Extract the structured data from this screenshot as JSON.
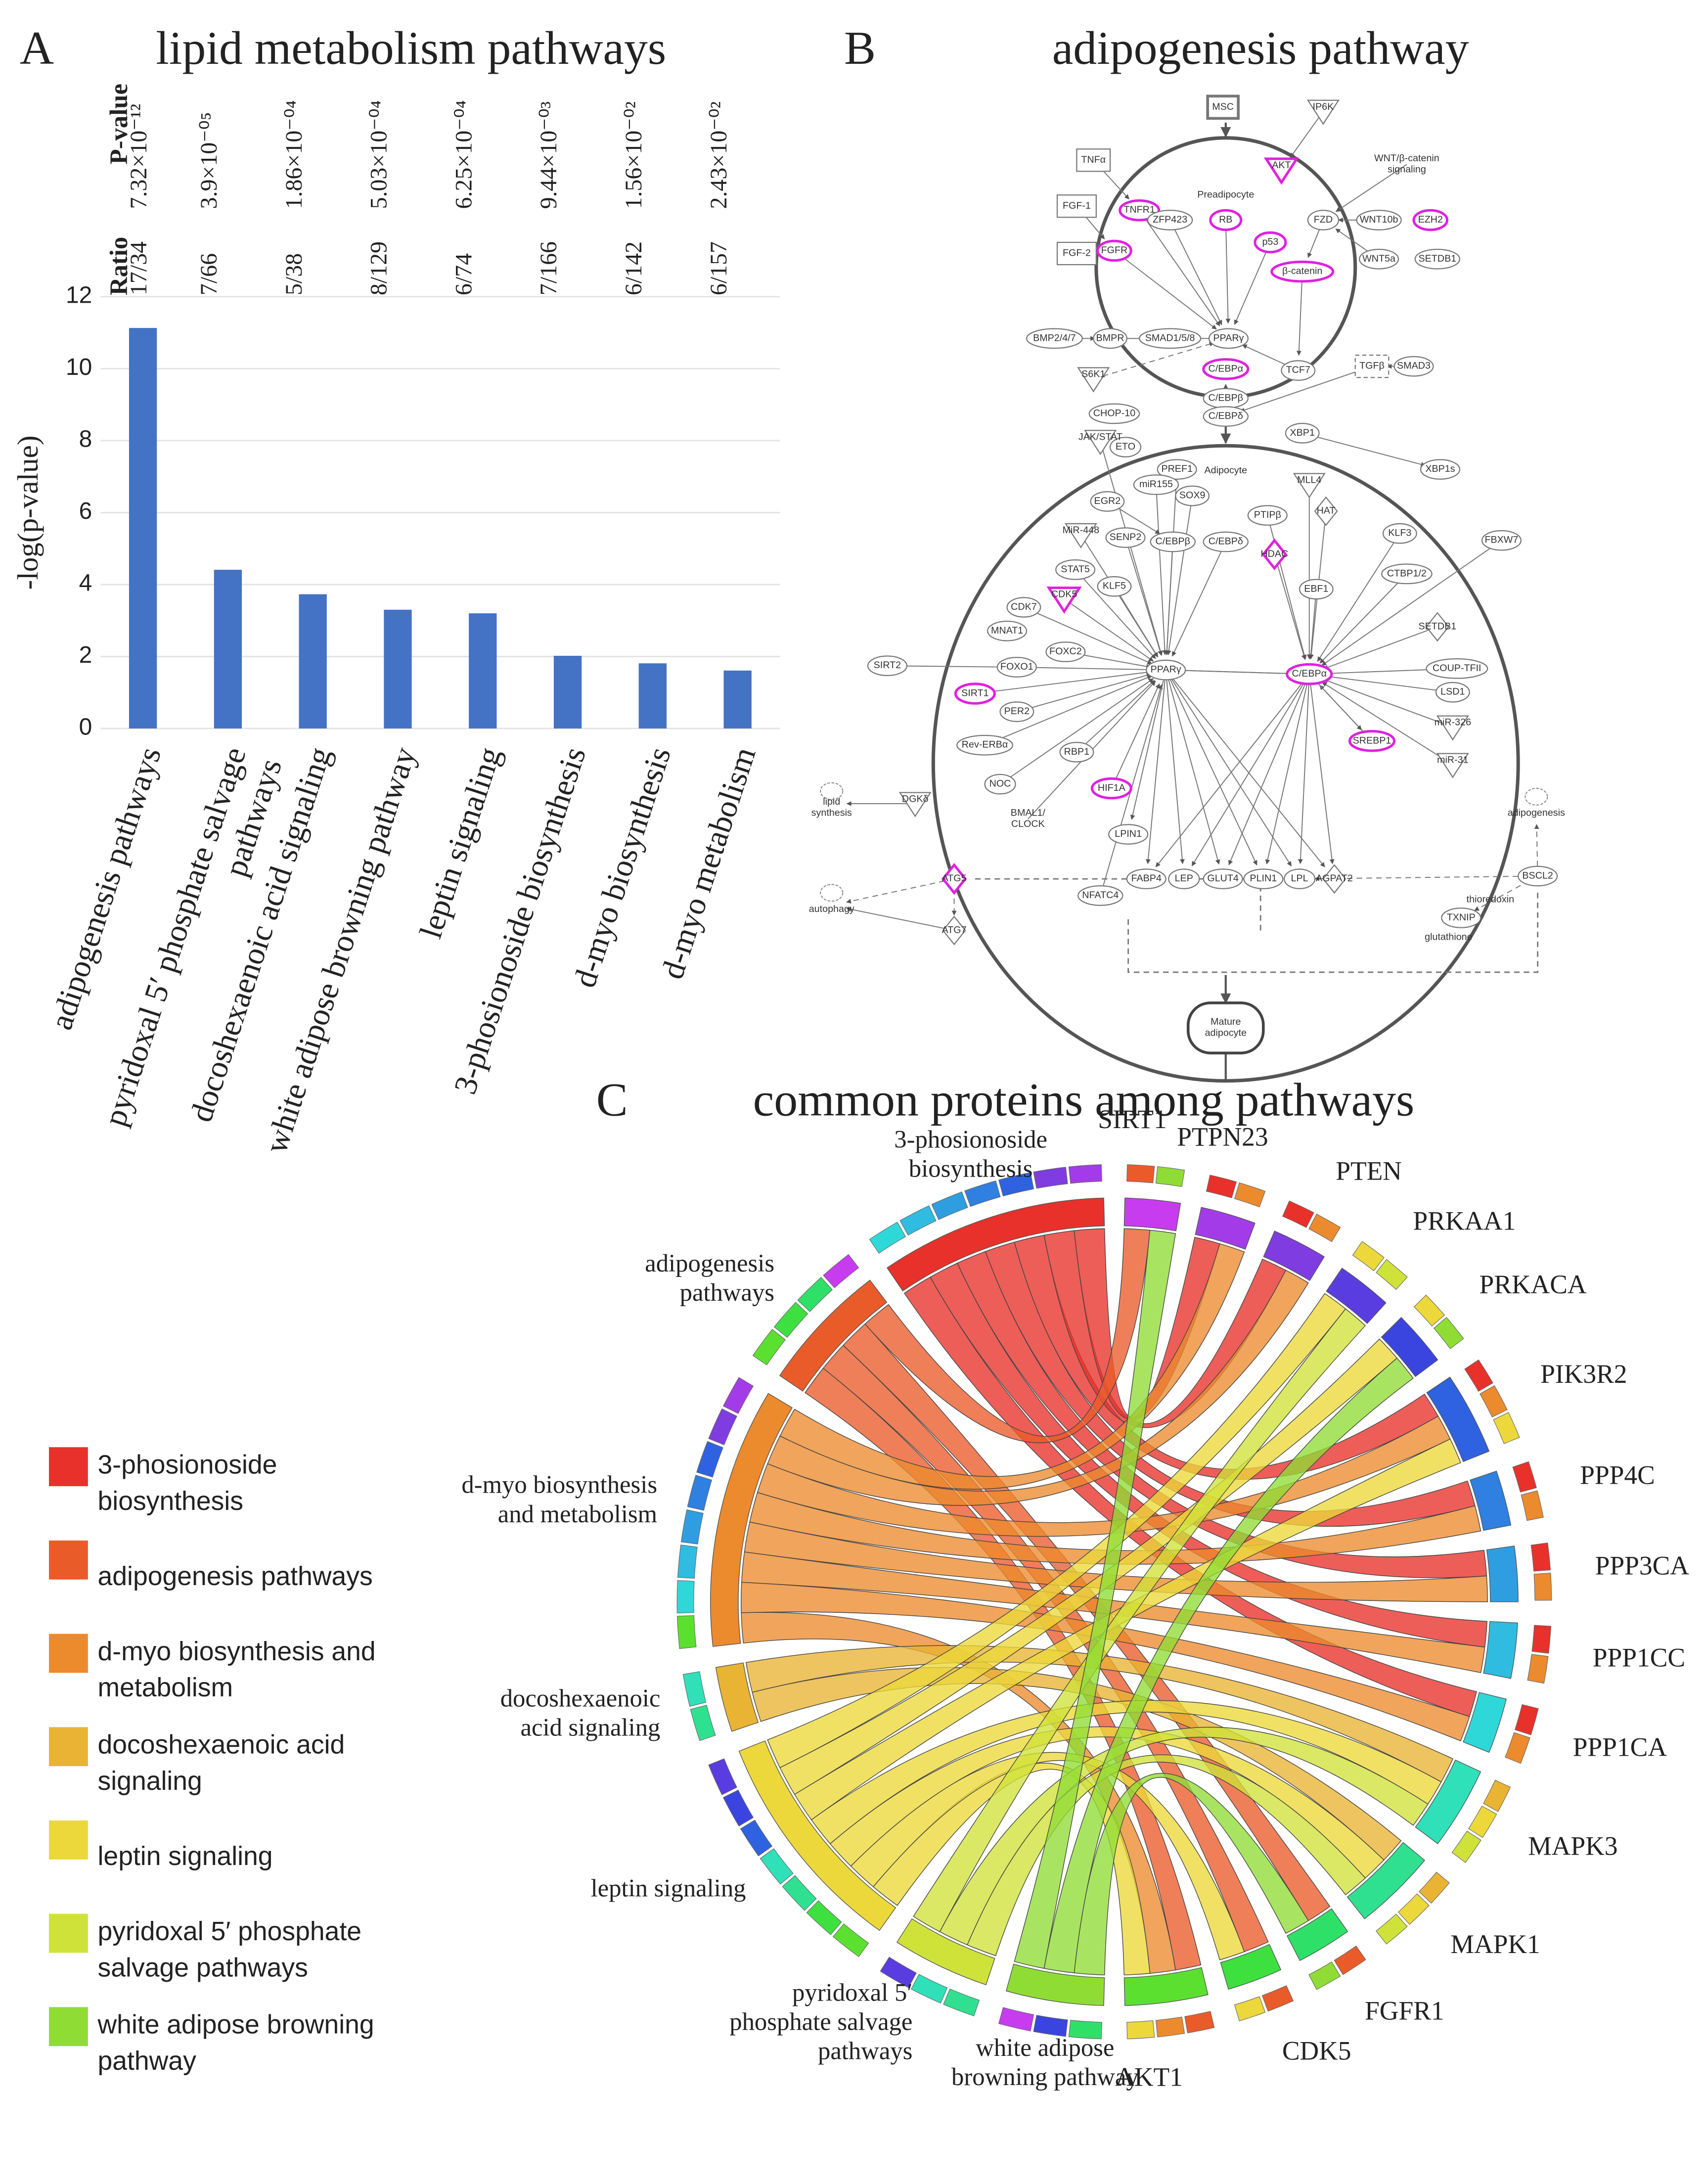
{
  "chart_data": [
    {
      "type": "bar",
      "panel_label": "A",
      "title": "lipid metabolism pathways",
      "y_label": "-log(p-value)",
      "categories": [
        "adipogenesis pathways",
        "pyridoxal 5′ phosphate salvage pathways",
        "docoshexaenoic acid signaling",
        "white adipose browning pathway",
        "leptin signaling",
        "3-phosionoside biosynthesis",
        "d-myo biosynthesis",
        "d-myo metabolism"
      ],
      "values": [
        11.13,
        4.41,
        3.73,
        3.3,
        3.2,
        2.02,
        1.81,
        1.61
      ],
      "color": "#4472c4",
      "ylim": [
        0,
        12
      ],
      "yticks": [
        0,
        2,
        4,
        6,
        8,
        10,
        12
      ],
      "grid": true,
      "pvalue_header": "P-value",
      "pvalues": [
        "7.32×10⁻¹²",
        "3.9×10⁻⁰⁵",
        "1.86×10⁻⁰⁴",
        "5.03×10⁻⁰⁴",
        "6.25×10⁻⁰⁴",
        "9.44×10⁻⁰³",
        "1.56×10⁻⁰²",
        "2.43×10⁻⁰²"
      ],
      "ratio_header": "Ratio",
      "ratios": [
        "17/34",
        "7/66",
        "5/38",
        "8/129",
        "6/74",
        "7/166",
        "6/142",
        "6/157"
      ]
    },
    {
      "type": "chord",
      "panel_label": "C",
      "title": "common proteins among pathways",
      "categories": [
        "SIRT1",
        "PTPN23",
        "PTEN",
        "PRKAA1",
        "PRKACA",
        "PIK3R2",
        "PPP4C",
        "PPP3CA",
        "PPP1CC",
        "PPP1CA",
        "MAPK3",
        "MAPK1",
        "FGFR1",
        "CDK5",
        "AKT1"
      ],
      "category_colors": [
        "#c83cf0",
        "#a33ce8",
        "#7f3ce0",
        "#5a3de0",
        "#3a45e0",
        "#2f62e0",
        "#2f80e0",
        "#2f9ee0",
        "#2fbce0",
        "#2fd8d8",
        "#2fe0b8",
        "#2fe090",
        "#2fe068",
        "#3ee040",
        "#5ce030"
      ],
      "series": [
        {
          "name": "3-phosionoside biosynthesis",
          "color": "#e8312a",
          "values": [
            0,
            1,
            1,
            0,
            0,
            1,
            1,
            1,
            1,
            1,
            0,
            0,
            0,
            0,
            0
          ]
        },
        {
          "name": "adipogenesis pathways",
          "color": "#ea5b2a",
          "values": [
            1,
            0,
            0,
            0,
            0,
            0,
            0,
            0,
            0,
            0,
            0,
            0,
            1,
            1,
            1
          ]
        },
        {
          "name": "d-myo biosynthesis and metabolism",
          "color": "#ec8a2e",
          "values": [
            0,
            1,
            1,
            0,
            0,
            1,
            1,
            1,
            1,
            1,
            0,
            0,
            0,
            0,
            1
          ]
        },
        {
          "name": "docoshexaenoic acid signaling",
          "color": "#e9b433",
          "values": [
            0,
            0,
            0,
            0,
            0,
            0,
            0,
            0,
            0,
            0,
            1,
            1,
            0,
            0,
            0
          ]
        },
        {
          "name": "leptin signaling",
          "color": "#ecd83a",
          "values": [
            0,
            0,
            0,
            1,
            1,
            1,
            0,
            0,
            0,
            0,
            1,
            1,
            0,
            1,
            1
          ]
        },
        {
          "name": "pyridoxal 5′ phosphate salvage pathways",
          "color": "#cfe23a",
          "values": [
            0,
            0,
            0,
            1,
            0,
            0,
            0,
            0,
            0,
            0,
            1,
            1,
            0,
            0,
            0
          ]
        },
        {
          "name": "white adipose browning pathway",
          "color": "#8fdd34",
          "values": [
            1,
            0,
            0,
            0,
            1,
            0,
            0,
            0,
            0,
            0,
            0,
            0,
            1,
            0,
            0
          ]
        }
      ],
      "legend": "left"
    }
  ],
  "diagram": {
    "panel_label": "B",
    "title": "adipogenesis pathway",
    "highlight_color": "#e020e0",
    "compartments": [
      "Preadipocyte",
      "Adipocyte"
    ],
    "nodes": [
      {
        "label": "MSC"
      },
      {
        "label": "IP6K"
      },
      {
        "label": "AKT",
        "highlighted": true
      },
      {
        "label": "WNT/β-catenin signaling"
      },
      {
        "label": "TNFα"
      },
      {
        "label": "TNFR1",
        "highlighted": true
      },
      {
        "label": "RB",
        "highlighted": true
      },
      {
        "label": "ZFP423"
      },
      {
        "label": "FGF-1"
      },
      {
        "label": "FZD"
      },
      {
        "label": "WNT10b"
      },
      {
        "label": "EZH2",
        "highlighted": true
      },
      {
        "label": "FGF-2"
      },
      {
        "label": "FGFR",
        "highlighted": true
      },
      {
        "label": "p53",
        "highlighted": true
      },
      {
        "label": "β-catenin",
        "highlighted": true
      },
      {
        "label": "WNT5a"
      },
      {
        "label": "SETDB1"
      },
      {
        "label": "BMP2/4/7"
      },
      {
        "label": "BMPR"
      },
      {
        "label": "SMAD1/5/8"
      },
      {
        "label": "PPARγ"
      },
      {
        "label": "S6K1"
      },
      {
        "label": "C/EBPα",
        "highlighted": true
      },
      {
        "label": "TCF7"
      },
      {
        "label": "CHOP-10"
      },
      {
        "label": "C/EBPβ"
      },
      {
        "label": "C/EBPδ"
      },
      {
        "label": "TGFβ"
      },
      {
        "label": "SMAD3"
      },
      {
        "label": "ETO"
      },
      {
        "label": "JAK/STAT"
      },
      {
        "label": "PREF1"
      },
      {
        "label": "XBP1"
      },
      {
        "label": "XBP1s"
      },
      {
        "label": "miR155"
      },
      {
        "label": "MLL4"
      },
      {
        "label": "SOX9"
      },
      {
        "label": "EGR2"
      },
      {
        "label": "PTIPβ"
      },
      {
        "label": "HAT"
      },
      {
        "label": "MiR-448"
      },
      {
        "label": "SENP2"
      },
      {
        "label": "C/EBPβ"
      },
      {
        "label": "C/EBPδ"
      },
      {
        "label": "KLF3"
      },
      {
        "label": "FBXW7"
      },
      {
        "label": "HDAC",
        "highlighted": true
      },
      {
        "label": "STAT5"
      },
      {
        "label": "KLF5"
      },
      {
        "label": "CTBP1/2"
      },
      {
        "label": "CDK5",
        "highlighted": true
      },
      {
        "label": "EBF1"
      },
      {
        "label": "CDK7"
      },
      {
        "label": "MNAT1"
      },
      {
        "label": "SETDB1"
      },
      {
        "label": "FOXC2"
      },
      {
        "label": "SIRT2"
      },
      {
        "label": "FOXO1"
      },
      {
        "label": "PPARγ"
      },
      {
        "label": "C/EBPα",
        "highlighted": true
      },
      {
        "label": "COUP-TFII"
      },
      {
        "label": "LSD1"
      },
      {
        "label": "SIRT1",
        "highlighted": true
      },
      {
        "label": "PER2"
      },
      {
        "label": "miR-326"
      },
      {
        "label": "SREBP1",
        "highlighted": true
      },
      {
        "label": "Rev-ERBα"
      },
      {
        "label": "miR-31"
      },
      {
        "label": "RBP1"
      },
      {
        "label": "NOC"
      },
      {
        "label": "HIF1A",
        "highlighted": true
      },
      {
        "label": "lipid synthesis"
      },
      {
        "label": "DGKδ"
      },
      {
        "label": "adipogenesis"
      },
      {
        "label": "BMAL1/ CLOCK"
      },
      {
        "label": "LPIN1"
      },
      {
        "label": "NFATC4"
      },
      {
        "label": "ATG5",
        "highlighted": true
      },
      {
        "label": "BSCL2"
      },
      {
        "label": "FABP4"
      },
      {
        "label": "LEP"
      },
      {
        "label": "GLUT4"
      },
      {
        "label": "PLIN1"
      },
      {
        "label": "LPL"
      },
      {
        "label": "AGPAT2"
      },
      {
        "label": "autophagy"
      },
      {
        "label": "thioredoxin"
      },
      {
        "label": "TXNIP"
      },
      {
        "label": "ATG7"
      },
      {
        "label": "glutathione"
      },
      {
        "label": "Mature adipocyte"
      }
    ]
  }
}
